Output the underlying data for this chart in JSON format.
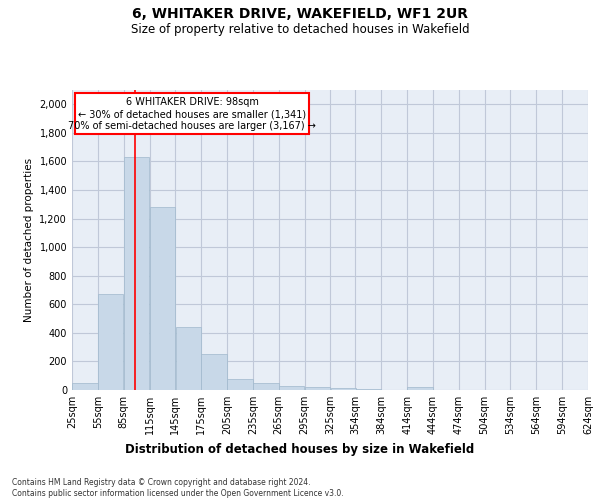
{
  "title1": "6, WHITAKER DRIVE, WAKEFIELD, WF1 2UR",
  "title2": "Size of property relative to detached houses in Wakefield",
  "xlabel": "Distribution of detached houses by size in Wakefield",
  "ylabel": "Number of detached properties",
  "footnote": "Contains HM Land Registry data © Crown copyright and database right 2024.\nContains public sector information licensed under the Open Government Licence v3.0.",
  "bar_left_edges": [
    25,
    55,
    85,
    115,
    145,
    175,
    205,
    235,
    265,
    295,
    325,
    354,
    384,
    414,
    444,
    474,
    504,
    534,
    564,
    594
  ],
  "bar_widths": [
    30,
    30,
    30,
    30,
    30,
    30,
    30,
    30,
    30,
    30,
    30,
    30,
    30,
    30,
    30,
    30,
    30,
    30,
    30,
    30
  ],
  "bar_heights": [
    50,
    670,
    1630,
    1280,
    440,
    250,
    80,
    50,
    30,
    20,
    15,
    10,
    0,
    20,
    0,
    0,
    0,
    0,
    0,
    0
  ],
  "bar_color": "#c8d8e8",
  "bar_edgecolor": "#a0b8cc",
  "grid_color": "#c0c8d8",
  "background_color": "#e8eef6",
  "red_line_x": 98,
  "annotation_line1": "6 WHITAKER DRIVE: 98sqm",
  "annotation_line2": "← 30% of detached houses are smaller (1,341)",
  "annotation_line3": "70% of semi-detached houses are larger (3,167) →",
  "ylim": [
    0,
    2100
  ],
  "yticks": [
    0,
    200,
    400,
    600,
    800,
    1000,
    1200,
    1400,
    1600,
    1800,
    2000
  ],
  "tick_labels": [
    "25sqm",
    "55sqm",
    "85sqm",
    "115sqm",
    "145sqm",
    "175sqm",
    "205sqm",
    "235sqm",
    "265sqm",
    "295sqm",
    "325sqm",
    "354sqm",
    "384sqm",
    "414sqm",
    "444sqm",
    "474sqm",
    "504sqm",
    "534sqm",
    "564sqm",
    "594sqm",
    "624sqm"
  ]
}
